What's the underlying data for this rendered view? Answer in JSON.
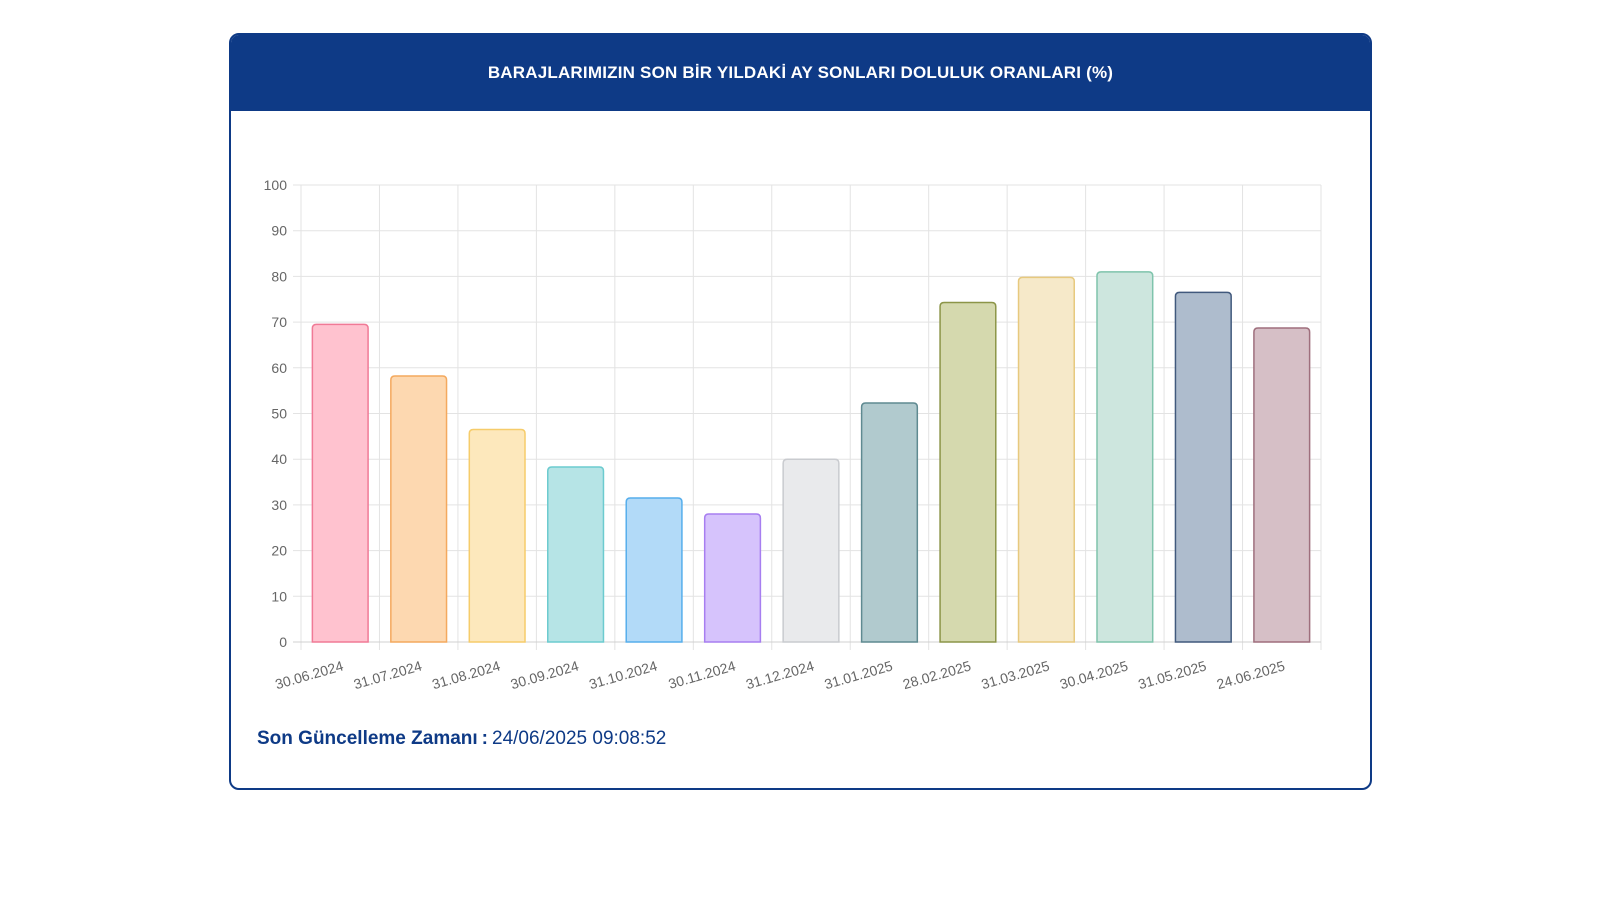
{
  "header": {
    "title": "BARAJLARIMIZIN SON BİR YILDAKİ AY SONLARI DOLULUK ORANLARI (%)"
  },
  "footer": {
    "label": "Son Güncelleme Zamanı",
    "separator": ":",
    "value": "24/06/2025 09:08:52"
  },
  "colors": {
    "header_bg": "#0e3a86",
    "grid": "#e3e3e3",
    "tick_text": "#666666"
  },
  "chart_data": {
    "type": "bar",
    "title": "BARAJLARIMIZIN SON BİR YILDAKİ AY SONLARI DOLULUK ORANLARI (%)",
    "xlabel": "",
    "ylabel": "",
    "ylim": [
      0,
      100
    ],
    "yticks": [
      "0",
      "10",
      "20",
      "30",
      "40",
      "50",
      "60",
      "70",
      "80",
      "90",
      "100"
    ],
    "grid": true,
    "legend": "none",
    "categories": [
      "30.06.2024",
      "31.07.2024",
      "31.08.2024",
      "30.09.2024",
      "31.10.2024",
      "30.11.2024",
      "31.12.2024",
      "31.01.2025",
      "28.02.2025",
      "31.03.2025",
      "30.04.2025",
      "31.05.2025",
      "24.06.2025"
    ],
    "values": [
      69.5,
      58.2,
      46.5,
      38.3,
      31.5,
      28.0,
      40.0,
      52.3,
      74.3,
      79.8,
      81.0,
      76.5,
      68.7
    ],
    "fill_colors": [
      "#ffc2cf",
      "#fdd8b0",
      "#fde8bc",
      "#b6e4e6",
      "#b2daf8",
      "#d6c3fc",
      "#e9eaec",
      "#b1cace",
      "#d5d9ae",
      "#f6e9c9",
      "#cde6de",
      "#aebccd",
      "#d6bfc6"
    ],
    "border_colors": [
      "#f07a96",
      "#f4a95e",
      "#f6cc6a",
      "#6ccbcf",
      "#56aeec",
      "#a77ef0",
      "#c9cbcf",
      "#5f8a91",
      "#8c9548",
      "#e7c97e",
      "#7fc4ac",
      "#41597d",
      "#9f6f7d"
    ]
  }
}
